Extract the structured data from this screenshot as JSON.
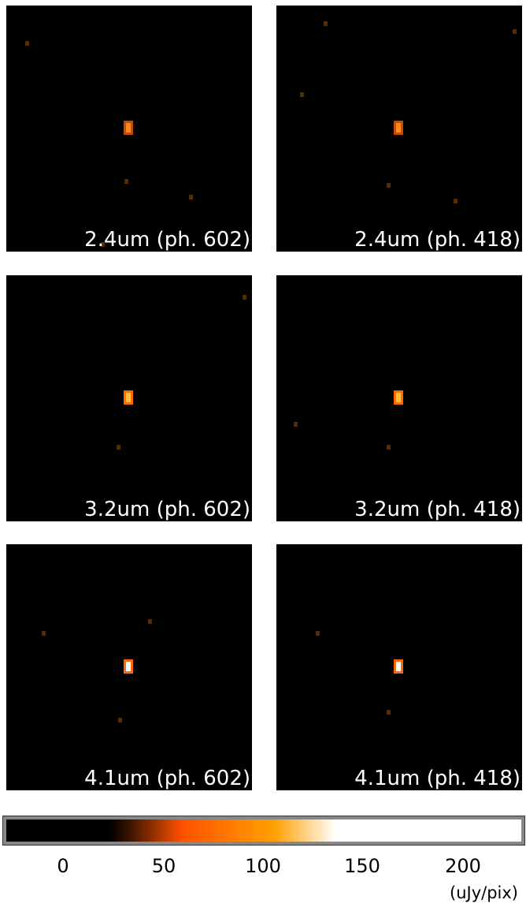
{
  "panels": [
    {
      "label": "2.4um (ph. 602)",
      "row": 0,
      "col": 0,
      "peak": 0.55
    },
    {
      "label": "2.4um (ph. 418)",
      "row": 0,
      "col": 1,
      "peak": 0.7
    },
    {
      "label": "3.2um (ph. 602)",
      "row": 1,
      "col": 0,
      "peak": 0.85
    },
    {
      "label": "3.2um (ph. 418)",
      "row": 1,
      "col": 1,
      "peak": 0.9
    },
    {
      "label": "4.1um (ph. 602)",
      "row": 2,
      "col": 0,
      "peak": 1.0
    },
    {
      "label": "4.1um (ph. 418)",
      "row": 2,
      "col": 1,
      "peak": 1.0
    }
  ],
  "colorbar": {
    "ticks": [
      "0",
      "50",
      "100",
      "150",
      "200"
    ],
    "tick_values": [
      0,
      50,
      100,
      150,
      200
    ],
    "range": [
      -30,
      230
    ],
    "unit": "(uJy/pix)",
    "colors": [
      "#000000",
      "#3a1500",
      "#ff5000",
      "#ffa000",
      "#ffffff"
    ]
  }
}
